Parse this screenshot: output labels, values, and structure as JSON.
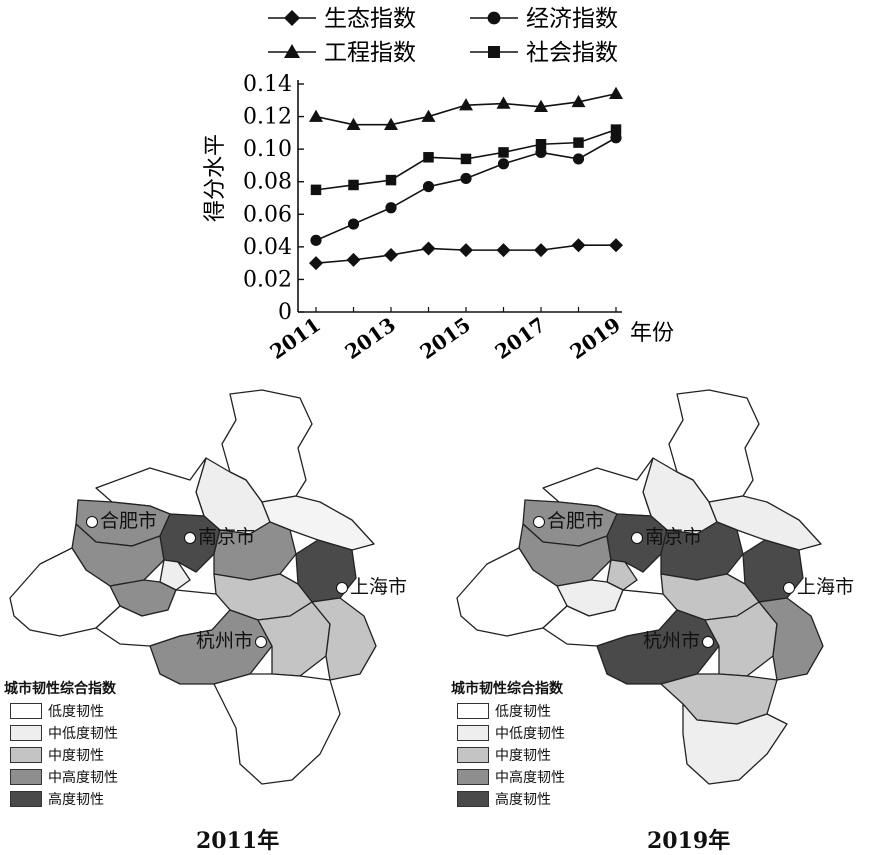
{
  "chart_data": {
    "type": "line",
    "x": [
      2011,
      2012,
      2013,
      2014,
      2015,
      2016,
      2017,
      2018,
      2019
    ],
    "xtick_labels": [
      "2011",
      "2013",
      "2015",
      "2017",
      "2019"
    ],
    "xlabel": "年份",
    "ylabel": "得分水平",
    "ylim": [
      0,
      0.14
    ],
    "yticks": [
      "0",
      "0.02",
      "0.04",
      "0.06",
      "0.08",
      "0.10",
      "0.12",
      "0.14"
    ],
    "legend_position": "top",
    "series": [
      {
        "name": "生态指数",
        "marker": "diamond",
        "values": [
          0.03,
          0.032,
          0.035,
          0.039,
          0.038,
          0.038,
          0.038,
          0.041,
          0.041
        ]
      },
      {
        "name": "经济指数",
        "marker": "circle",
        "values": [
          0.044,
          0.054,
          0.064,
          0.077,
          0.082,
          0.091,
          0.098,
          0.094,
          0.107
        ]
      },
      {
        "name": "工程指数",
        "marker": "triangle",
        "values": [
          0.12,
          0.115,
          0.115,
          0.12,
          0.127,
          0.128,
          0.126,
          0.129,
          0.134
        ]
      },
      {
        "name": "社会指数",
        "marker": "square",
        "values": [
          0.075,
          0.078,
          0.081,
          0.095,
          0.094,
          0.098,
          0.103,
          0.104,
          0.112
        ]
      }
    ]
  },
  "maps": {
    "legend_title": "城市韧性综合指数",
    "legend_items": [
      {
        "label": "低度韧性",
        "color": "#ffffff"
      },
      {
        "label": "中低度韧性",
        "color": "#eeeeee"
      },
      {
        "label": "中度韧性",
        "color": "#c4c4c4"
      },
      {
        "label": "中高度韧性",
        "color": "#8e8e8e"
      },
      {
        "label": "高度韧性",
        "color": "#4a4a4a"
      }
    ],
    "cities": {
      "hefei": "合肥市",
      "nanjing": "南京市",
      "shanghai": "上海市",
      "hangzhou": "杭州市"
    },
    "left_caption": "2011年",
    "right_caption": "2019年"
  }
}
